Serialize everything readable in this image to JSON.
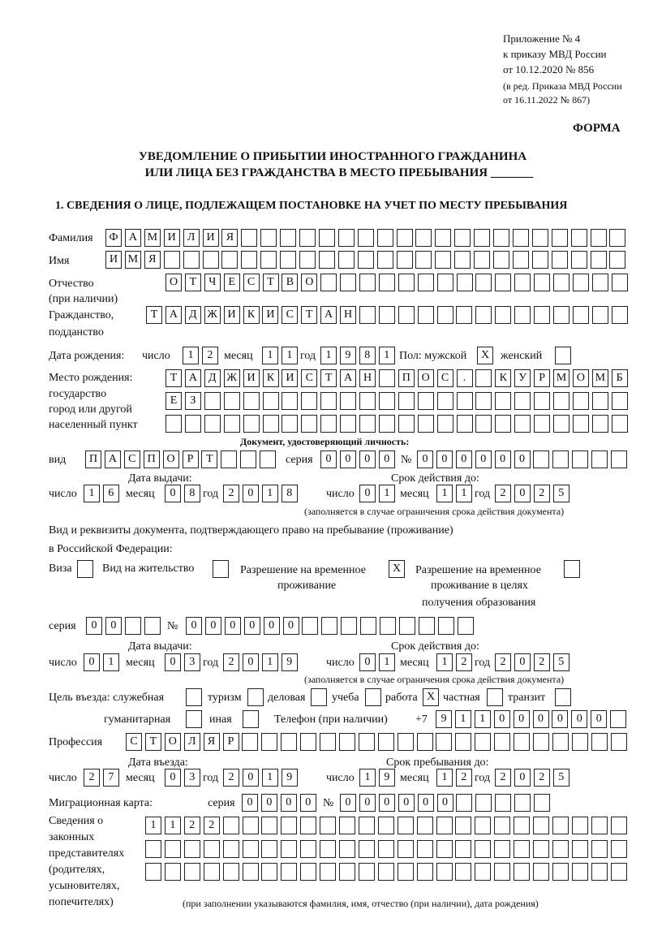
{
  "header": {
    "line1": "Приложение № 4",
    "line2": "к приказу МВД России",
    "line3": "от 10.12.2020 № 856",
    "line4": "(в ред. Приказа МВД России",
    "line5": "от 16.11.2022 № 867)"
  },
  "forma": "ФОРМА",
  "title": {
    "line1": "УВЕДОМЛЕНИЕ О ПРИБЫТИИ ИНОСТРАННОГО ГРАЖДАНИНА",
    "line2": "ИЛИ ЛИЦА БЕЗ ГРАЖДАНСТВА В МЕСТО ПРЕБЫВАНИЯ _______"
  },
  "section1": "1. СВЕДЕНИЯ О ЛИЦЕ, ПОДЛЕЖАЩЕМ ПОСТАНОВКЕ НА УЧЕТ ПО МЕСТУ ПРЕБЫВАНИЯ",
  "labels": {
    "surname": "Фамилия",
    "name": "Имя",
    "patronymic1": "Отчество",
    "patronymic2": "(при наличии)",
    "citizenship1": "Гражданство,",
    "citizenship2": "подданство",
    "birth_date": "Дата рождения:",
    "day": "число",
    "month": "месяц",
    "year": "год",
    "sex": "Пол: мужской",
    "female": "женский",
    "birthplace1": "Место рождения:",
    "birthplace2": "государство",
    "birthplace3": "город или другой",
    "birthplace4": "населенный пункт",
    "id_doc": "Документ, удостоверяющий личность:",
    "kind": "вид",
    "series": "серия",
    "number": "№",
    "issue_date": "Дата выдачи:",
    "valid_until": "Срок действия до:",
    "valid_note": "(заполняется в случае ограничения срока действия документа)",
    "right_doc1": "Вид и реквизиты документа, подтверждающего право на пребывание (проживание)",
    "right_doc2": "в Российской Федерации:",
    "visa": "Виза",
    "residence": "Вид на жительство",
    "temp1": "Разрешение на временное",
    "temp2": "проживание",
    "edu1": "Разрешение на временное",
    "edu2": "проживание в целях",
    "edu3": "получения образования",
    "purpose": "Цель въезда: служебная",
    "tourism": "туризм",
    "business": "деловая",
    "study": "учеба",
    "work": "работа",
    "private": "частная",
    "transit": "транзит",
    "humanitarian": "гуманитарная",
    "other": "иная",
    "phone": "Телефон (при наличии)",
    "phone_prefix": "+7",
    "profession": "Профессия",
    "entry_date": "Дата въезда:",
    "stay_until": "Срок пребывания до:",
    "migration_card": "Миграционная карта:",
    "rep1": "Сведения о",
    "rep2": "законных",
    "rep3": "представителях",
    "rep4": "(родителях,",
    "rep5": "усыновителях,",
    "rep6": "попечителях)",
    "rep_note": "(при заполнении указываются фамилия, имя, отчество (при наличии), дата рождения)"
  },
  "values": {
    "surname": [
      "Ф",
      "А",
      "М",
      "И",
      "Л",
      "И",
      "Я"
    ],
    "name": [
      "И",
      "М",
      "Я"
    ],
    "patronymic": [
      "О",
      "Т",
      "Ч",
      "Е",
      "С",
      "Т",
      "В",
      "О"
    ],
    "citizenship": [
      "Т",
      "А",
      "Д",
      "Ж",
      "И",
      "К",
      "И",
      "С",
      "Т",
      "А",
      "Н"
    ],
    "birth_day": [
      "1",
      "2"
    ],
    "birth_month": [
      "1",
      "1"
    ],
    "birth_year": [
      "1",
      "9",
      "8",
      "1"
    ],
    "male": "X",
    "female": "",
    "birthplace1": [
      "Т",
      "А",
      "Д",
      "Ж",
      "И",
      "К",
      "И",
      "С",
      "Т",
      "А",
      "Н",
      "",
      "П",
      "О",
      "С",
      ".",
      "",
      "К",
      "У",
      "Р",
      "М",
      "О",
      "М",
      "Б"
    ],
    "birthplace2": [
      "Е",
      "З"
    ],
    "birthplace3": [],
    "doc_kind": [
      "П",
      "А",
      "С",
      "П",
      "О",
      "Р",
      "Т"
    ],
    "doc_series": [
      "0",
      "0",
      "0",
      "0"
    ],
    "doc_number": [
      "0",
      "0",
      "0",
      "0",
      "0",
      "0"
    ],
    "doc_issue_day": [
      "1",
      "6"
    ],
    "doc_issue_month": [
      "0",
      "8"
    ],
    "doc_issue_year": [
      "2",
      "0",
      "1",
      "8"
    ],
    "doc_valid_day": [
      "0",
      "1"
    ],
    "doc_valid_month": [
      "1",
      "1"
    ],
    "doc_valid_year": [
      "2",
      "0",
      "2",
      "5"
    ],
    "visa": "",
    "residence": "",
    "temp_residence": "X",
    "edu_residence": "",
    "right_series": [
      "0",
      "0"
    ],
    "right_number": [
      "0",
      "0",
      "0",
      "0",
      "0",
      "0"
    ],
    "right_issue_day": [
      "0",
      "1"
    ],
    "right_issue_month": [
      "0",
      "3"
    ],
    "right_issue_year": [
      "2",
      "0",
      "1",
      "9"
    ],
    "right_valid_day": [
      "0",
      "1"
    ],
    "right_valid_month": [
      "1",
      "2"
    ],
    "right_valid_year": [
      "2",
      "0",
      "2",
      "5"
    ],
    "purpose_service": "",
    "purpose_tourism": "",
    "purpose_business": "",
    "purpose_study": "",
    "purpose_work": "X",
    "purpose_private": "",
    "purpose_transit": "",
    "purpose_humanitarian": "",
    "purpose_other": "",
    "phone": [
      "9",
      "1",
      "1",
      "0",
      "0",
      "0",
      "0",
      "0",
      "0"
    ],
    "profession": [
      "С",
      "Т",
      "О",
      "Л",
      "Я",
      "Р"
    ],
    "entry_day": [
      "2",
      "7"
    ],
    "entry_month": [
      "0",
      "3"
    ],
    "entry_year": [
      "2",
      "0",
      "1",
      "9"
    ],
    "stay_day": [
      "1",
      "9"
    ],
    "stay_month": [
      "1",
      "2"
    ],
    "stay_year": [
      "2",
      "0",
      "2",
      "5"
    ],
    "mc_series": [
      "0",
      "0",
      "0",
      "0"
    ],
    "mc_number": [
      "0",
      "0",
      "0",
      "0",
      "0",
      "0"
    ],
    "rep1": [
      "1",
      "1",
      "2",
      "2"
    ],
    "rep2": [],
    "rep3": []
  }
}
